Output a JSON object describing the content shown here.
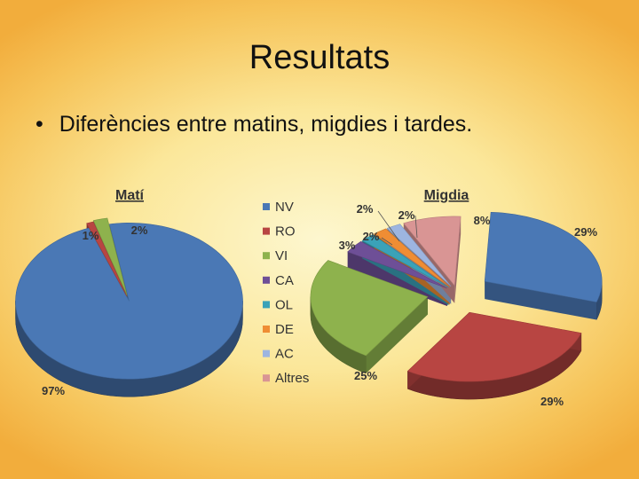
{
  "slide": {
    "title": "Resultats",
    "bullet_symbol": "•",
    "bullet_text": "Diferències entre matins, migdies i tardes."
  },
  "legend": {
    "position": "center",
    "entries": [
      {
        "label": "NV",
        "color": "#4a78b5"
      },
      {
        "label": "RO",
        "color": "#b84542"
      },
      {
        "label": "VI",
        "color": "#8eb24d"
      },
      {
        "label": "CA",
        "color": "#6e4f97"
      },
      {
        "label": "OL",
        "color": "#3aa2b8"
      },
      {
        "label": "DE",
        "color": "#ef8d34"
      },
      {
        "label": "AC",
        "color": "#9db5e0"
      },
      {
        "label": "Altres",
        "color": "#d99594"
      }
    ]
  },
  "chart_data": [
    {
      "type": "pie",
      "title": "Matí",
      "labels": [
        "NV",
        "RO",
        "VI"
      ],
      "values": [
        97,
        1,
        2
      ],
      "value_labels": [
        "97%",
        "1%",
        "2%"
      ],
      "exploded": true,
      "style": "3d"
    },
    {
      "type": "pie",
      "title": "Migdia",
      "labels": [
        "NV",
        "RO",
        "VI",
        "CA",
        "OL",
        "DE",
        "AC",
        "Altres"
      ],
      "values": [
        29,
        29,
        25,
        3,
        2,
        2,
        2,
        8
      ],
      "value_labels": [
        "29%",
        "29%",
        "25%",
        "3%",
        "2%",
        "2%",
        "2%",
        "8%"
      ],
      "exploded": true,
      "style": "3d"
    }
  ]
}
